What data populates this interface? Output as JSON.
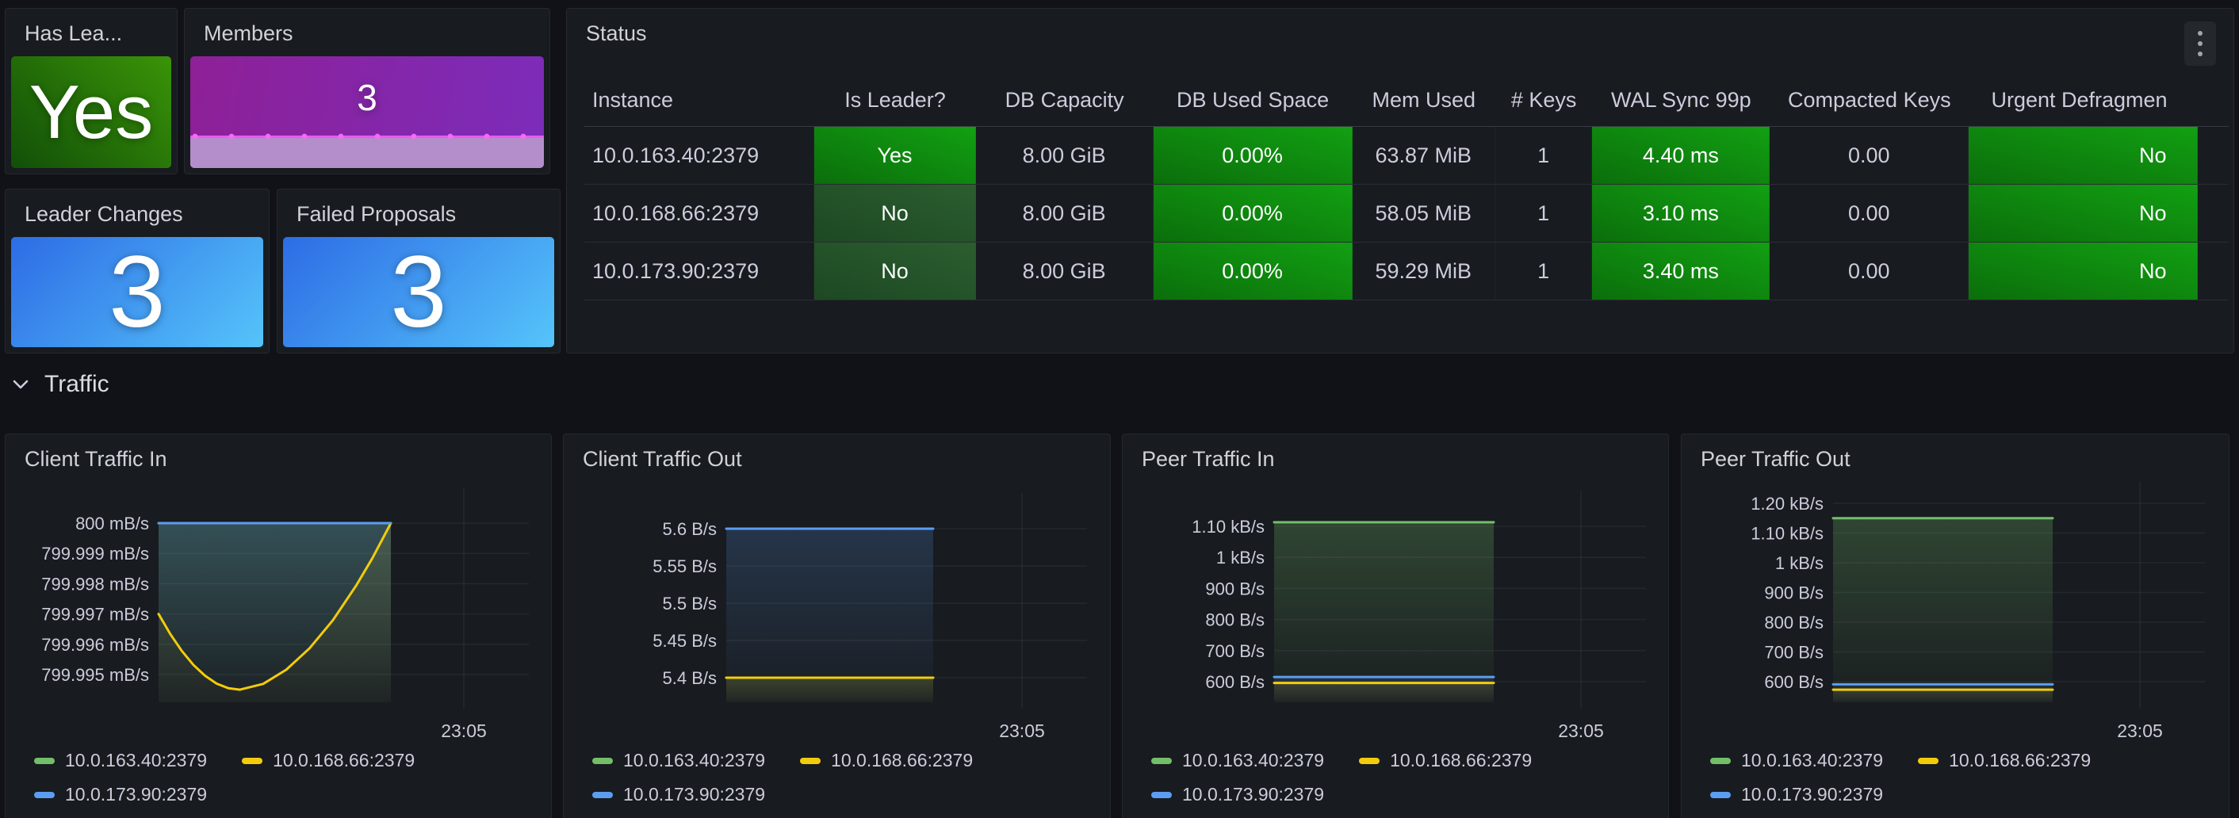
{
  "colors": {
    "page_bg": "#111217",
    "panel_bg": "#181b1f",
    "panel_border": "#25282e",
    "text": "#ccccdc",
    "value_text": "#ffffff",
    "series_green": "#73bf69",
    "series_yellow": "#f2cc0c",
    "series_blue": "#5b9df2",
    "cell_green_bright": "#12a012",
    "cell_green_dim": "#2b5e2f",
    "stat_green_gradient": [
      "#114f08",
      "#3a9408"
    ],
    "stat_blue_gradient": [
      "#2d6ce5",
      "#55c4fa"
    ],
    "stat_purple_gradient": [
      "#8e2097",
      "#7c2cba"
    ],
    "sparkline_fill": "#b48dcb",
    "sparkline_line": "#e85af0",
    "grid_line": "rgba(204,204,220,0.07)"
  },
  "stat_panels": {
    "has_leader": {
      "title": "Has Lea...",
      "value": "Yes"
    },
    "members": {
      "title": "Members",
      "value": "3"
    },
    "leader_changes": {
      "title": "Leader Changes",
      "value": "3"
    },
    "failed_proposals": {
      "title": "Failed Proposals",
      "value": "3"
    }
  },
  "status_panel": {
    "title": "Status",
    "menu_icon": "kebab-menu",
    "columns": [
      {
        "label": "Instance",
        "align": "left",
        "width": 14.0,
        "style": "plain"
      },
      {
        "label": "Is Leader?",
        "align": "center",
        "width": 9.8,
        "style": "green-by-value"
      },
      {
        "label": "DB Capacity",
        "align": "center",
        "width": 10.8,
        "style": "plain"
      },
      {
        "label": "DB Used Space",
        "align": "center",
        "width": 12.1,
        "style": "green"
      },
      {
        "label": "Mem Used",
        "align": "center",
        "width": 8.7,
        "style": "plain"
      },
      {
        "label": "# Keys",
        "align": "center",
        "width": 5.9,
        "style": "plain"
      },
      {
        "label": "WAL Sync 99p",
        "align": "center",
        "width": 10.8,
        "style": "green"
      },
      {
        "label": "Compacted Keys",
        "align": "center",
        "width": 12.1,
        "style": "plain"
      },
      {
        "label": "Urgent Defragmen",
        "align": "right",
        "width": 13.9,
        "style": "green"
      }
    ],
    "rows": [
      [
        "10.0.163.40:2379",
        "Yes",
        "8.00 GiB",
        "0.00%",
        "63.87 MiB",
        "1",
        "4.40 ms",
        "0.00",
        "No"
      ],
      [
        "10.0.168.66:2379",
        "No",
        "8.00 GiB",
        "0.00%",
        "58.05 MiB",
        "1",
        "3.10 ms",
        "0.00",
        "No"
      ],
      [
        "10.0.173.90:2379",
        "No",
        "8.00 GiB",
        "0.00%",
        "59.29 MiB",
        "1",
        "3.40 ms",
        "0.00",
        "No"
      ]
    ]
  },
  "sections": {
    "traffic_label": "Traffic"
  },
  "chart_data": [
    {
      "type": "area",
      "title": "Client Traffic In",
      "x_tick": "23:05",
      "unit": "mB/s",
      "legend_position": "bottom",
      "y_ticks": [
        {
          "label": "800 mB/s",
          "value": 800
        },
        {
          "label": "799.999 mB/s",
          "value": 799.999
        },
        {
          "label": "799.998 mB/s",
          "value": 799.998
        },
        {
          "label": "799.997 mB/s",
          "value": 799.997
        },
        {
          "label": "799.996 mB/s",
          "value": 799.996
        },
        {
          "label": "799.995 mB/s",
          "value": 799.995
        }
      ],
      "series": [
        {
          "name": "10.0.163.40:2379",
          "color": "#73bf69",
          "fill_opacity": 0.2,
          "flat_value": 800
        },
        {
          "name": "10.0.168.66:2379",
          "color": "#f2cc0c",
          "fill_opacity": 0.12,
          "points": [
            [
              0,
              799.997
            ],
            [
              0.05,
              799.99634
            ],
            [
              0.1,
              799.99578
            ],
            [
              0.15,
              799.99532
            ],
            [
              0.2,
              799.99496
            ],
            [
              0.25,
              799.9947
            ],
            [
              0.3,
              799.99455
            ],
            [
              0.35,
              799.9945
            ],
            [
              0.45,
              799.99469
            ],
            [
              0.55,
              799.99516
            ],
            [
              0.65,
              799.99587
            ],
            [
              0.75,
              799.99679
            ],
            [
              0.85,
              799.99793
            ],
            [
              0.92,
              799.99884
            ],
            [
              1,
              800
            ]
          ]
        },
        {
          "name": "10.0.173.90:2379",
          "color": "#5b9df2",
          "fill_opacity": 0.2,
          "flat_value": 800
        }
      ]
    },
    {
      "type": "area",
      "title": "Client Traffic Out",
      "x_tick": "23:05",
      "unit": "B/s",
      "legend_position": "bottom",
      "y_ticks": [
        {
          "label": "5.6 B/s",
          "value": 5.6
        },
        {
          "label": "5.55 B/s",
          "value": 5.55
        },
        {
          "label": "5.5 B/s",
          "value": 5.5
        },
        {
          "label": "5.45 B/s",
          "value": 5.45
        },
        {
          "label": "5.4 B/s",
          "value": 5.4
        }
      ],
      "series": [
        {
          "name": "10.0.163.40:2379",
          "color": "#73bf69",
          "fill_opacity": 0.1,
          "flat_value": 5.4
        },
        {
          "name": "10.0.168.66:2379",
          "color": "#f2cc0c",
          "fill_opacity": 0.12,
          "flat_value": 5.4
        },
        {
          "name": "10.0.173.90:2379",
          "color": "#5b9df2",
          "fill_opacity": 0.2,
          "flat_value": 5.6
        }
      ]
    },
    {
      "type": "area",
      "title": "Peer Traffic In",
      "x_tick": "23:05",
      "unit": "B/s",
      "legend_position": "bottom",
      "y_ticks": [
        {
          "label": "1.10 kB/s",
          "value": 1100
        },
        {
          "label": "1 kB/s",
          "value": 1000
        },
        {
          "label": "900 B/s",
          "value": 900
        },
        {
          "label": "800 B/s",
          "value": 800
        },
        {
          "label": "700 B/s",
          "value": 700
        },
        {
          "label": "600 B/s",
          "value": 600
        }
      ],
      "series": [
        {
          "name": "10.0.163.40:2379",
          "color": "#73bf69",
          "fill_opacity": 0.26,
          "flat_value": 1113
        },
        {
          "name": "10.0.168.66:2379",
          "color": "#f2cc0c",
          "fill_opacity": 0.12,
          "flat_value": 596
        },
        {
          "name": "10.0.173.90:2379",
          "color": "#5b9df2",
          "fill_opacity": 0.12,
          "flat_value": 615
        }
      ]
    },
    {
      "type": "area",
      "title": "Peer Traffic Out",
      "x_tick": "23:05",
      "unit": "B/s",
      "legend_position": "bottom",
      "y_ticks": [
        {
          "label": "1.20 kB/s",
          "value": 1200
        },
        {
          "label": "1.10 kB/s",
          "value": 1100
        },
        {
          "label": "1 kB/s",
          "value": 1000
        },
        {
          "label": "900 B/s",
          "value": 900
        },
        {
          "label": "800 B/s",
          "value": 800
        },
        {
          "label": "700 B/s",
          "value": 700
        },
        {
          "label": "600 B/s",
          "value": 600
        }
      ],
      "series": [
        {
          "name": "10.0.163.40:2379",
          "color": "#73bf69",
          "fill_opacity": 0.26,
          "flat_value": 1150
        },
        {
          "name": "10.0.168.66:2379",
          "color": "#f2cc0c",
          "fill_opacity": 0.12,
          "flat_value": 573
        },
        {
          "name": "10.0.173.90:2379",
          "color": "#5b9df2",
          "fill_opacity": 0.12,
          "flat_value": 591
        }
      ]
    }
  ]
}
